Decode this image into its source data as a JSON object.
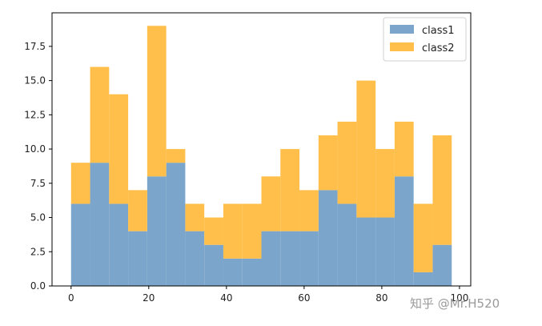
{
  "chart_data": {
    "type": "bar",
    "stacked": true,
    "histogram": true,
    "bin_start": 0,
    "bin_width": 4.9,
    "x": [
      0,
      4.9,
      9.8,
      14.7,
      19.6,
      24.5,
      29.4,
      34.3,
      39.2,
      44.1,
      49.0,
      53.9,
      58.8,
      63.7,
      68.6,
      73.5,
      78.4,
      83.3,
      88.2,
      93.1
    ],
    "series": [
      {
        "name": "class1",
        "color": "#7ba5ca",
        "values": [
          6,
          9,
          6,
          4,
          8,
          9,
          4,
          3,
          2,
          2,
          4,
          4,
          4,
          7,
          6,
          5,
          5,
          8,
          1,
          3
        ]
      },
      {
        "name": "class2",
        "color": "#ffbf4a",
        "values": [
          3,
          7,
          8,
          3,
          11,
          1,
          2,
          2,
          4,
          4,
          4,
          6,
          3,
          4,
          6,
          10,
          5,
          4,
          5,
          8
        ]
      }
    ],
    "xticks": [
      0,
      20,
      40,
      60,
      80,
      100
    ],
    "xtick_labels": [
      "0",
      "20",
      "40",
      "60",
      "80",
      "100"
    ],
    "yticks": [
      0,
      2.5,
      5,
      7.5,
      10,
      12.5,
      15,
      17.5
    ],
    "ytick_labels": [
      "0.0",
      "2.5",
      "5.0",
      "7.5",
      "10.0",
      "12.5",
      "15.0",
      "17.5"
    ],
    "xlim": [
      -4.9,
      102.9
    ],
    "ylim": [
      0,
      19.95
    ],
    "title": "",
    "xlabel": "",
    "ylabel": "",
    "legend_position": "top-right",
    "grid": false
  },
  "watermark": "知乎 @Mr.H520"
}
